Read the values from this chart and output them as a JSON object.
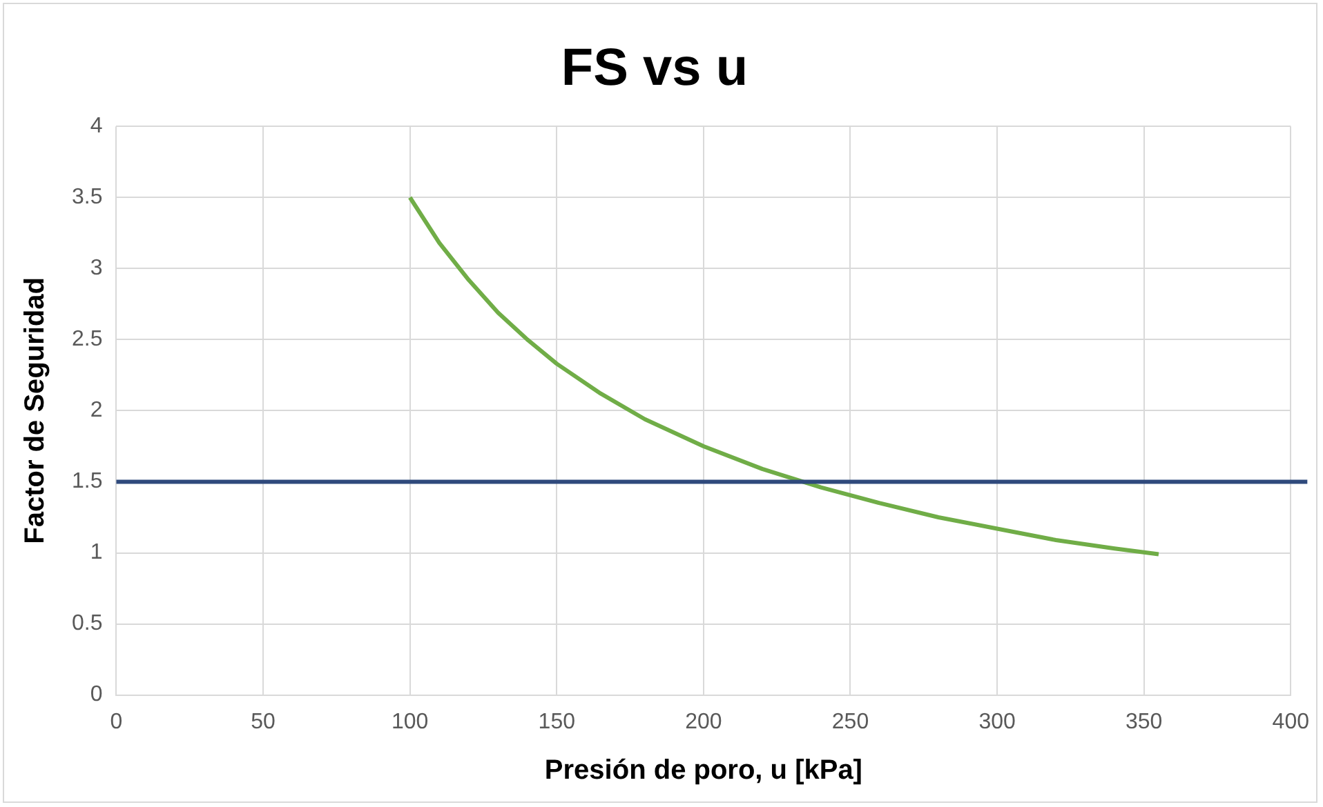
{
  "chart_data": {
    "type": "line",
    "title": "FS vs u",
    "xlabel": "Presión de poro, u [kPa]",
    "ylabel": "Factor de Seguridad",
    "x": [
      100,
      110,
      120,
      130,
      140,
      150,
      165,
      180,
      200,
      220,
      240,
      260,
      280,
      300,
      320,
      340,
      355
    ],
    "series": [
      {
        "color": "#70ad47",
        "values": [
          3.5,
          3.18,
          2.92,
          2.69,
          2.5,
          2.33,
          2.12,
          1.94,
          1.75,
          1.59,
          1.46,
          1.35,
          1.25,
          1.17,
          1.09,
          1.03,
          0.99
        ]
      }
    ],
    "xlim": [
      0,
      400
    ],
    "xticks": [
      0,
      50,
      100,
      150,
      200,
      250,
      300,
      350,
      400
    ],
    "ylim": [
      0,
      4
    ],
    "yticks": [
      0,
      0.5,
      1,
      1.5,
      2,
      2.5,
      3,
      3.5,
      4
    ],
    "ref_lines": [
      {
        "axis": "y",
        "value": 1.5,
        "color": "#2f4a7c"
      }
    ],
    "grid": true,
    "legend": false,
    "marker": "none",
    "line_style": "solid"
  }
}
